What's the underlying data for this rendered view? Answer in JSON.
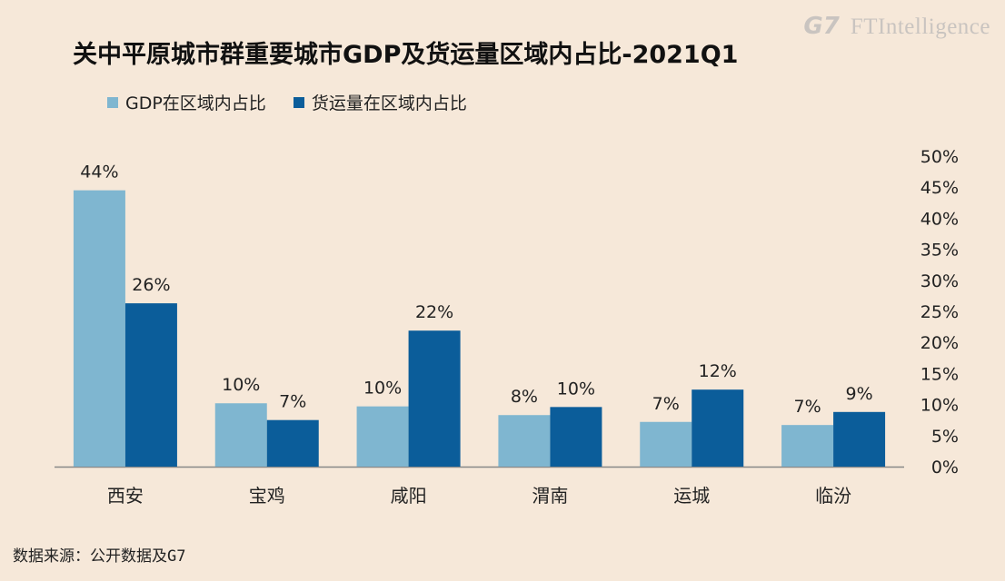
{
  "brand": {
    "g7": "G7",
    "ft": "FTIntelligence"
  },
  "colors": {
    "background": "#f6e8d9",
    "gdp": "#7fb6d0",
    "freight": "#0b5d9a",
    "axis": "#888888"
  },
  "chart_data": {
    "type": "bar",
    "title": "关中平原城市群重要城市GDP及货运量区域内占比-2021Q1",
    "categories": [
      "西安",
      "宝鸡",
      "咸阳",
      "渭南",
      "运城",
      "临汾"
    ],
    "series": [
      {
        "name": "GDP在区域内占比",
        "values": [
          44.5,
          10.2,
          9.7,
          8.3,
          7.2,
          6.7
        ],
        "labels": [
          "44%",
          "10%",
          "10%",
          "8%",
          "7%",
          "7%"
        ]
      },
      {
        "name": "货运量在区域内占比",
        "values": [
          26.3,
          7.5,
          21.9,
          9.6,
          12.4,
          8.8
        ],
        "labels": [
          "26%",
          "7%",
          "22%",
          "10%",
          "12%",
          "9%"
        ]
      }
    ],
    "ylim": [
      0,
      50
    ],
    "yticks": [
      "0%",
      "5%",
      "10%",
      "15%",
      "20%",
      "25%",
      "30%",
      "35%",
      "40%",
      "45%",
      "50%"
    ],
    "y_axis_side": "right",
    "legend_position": "top-left",
    "grid": false
  },
  "footer": {
    "source": "数据来源：公开数据及G7"
  }
}
